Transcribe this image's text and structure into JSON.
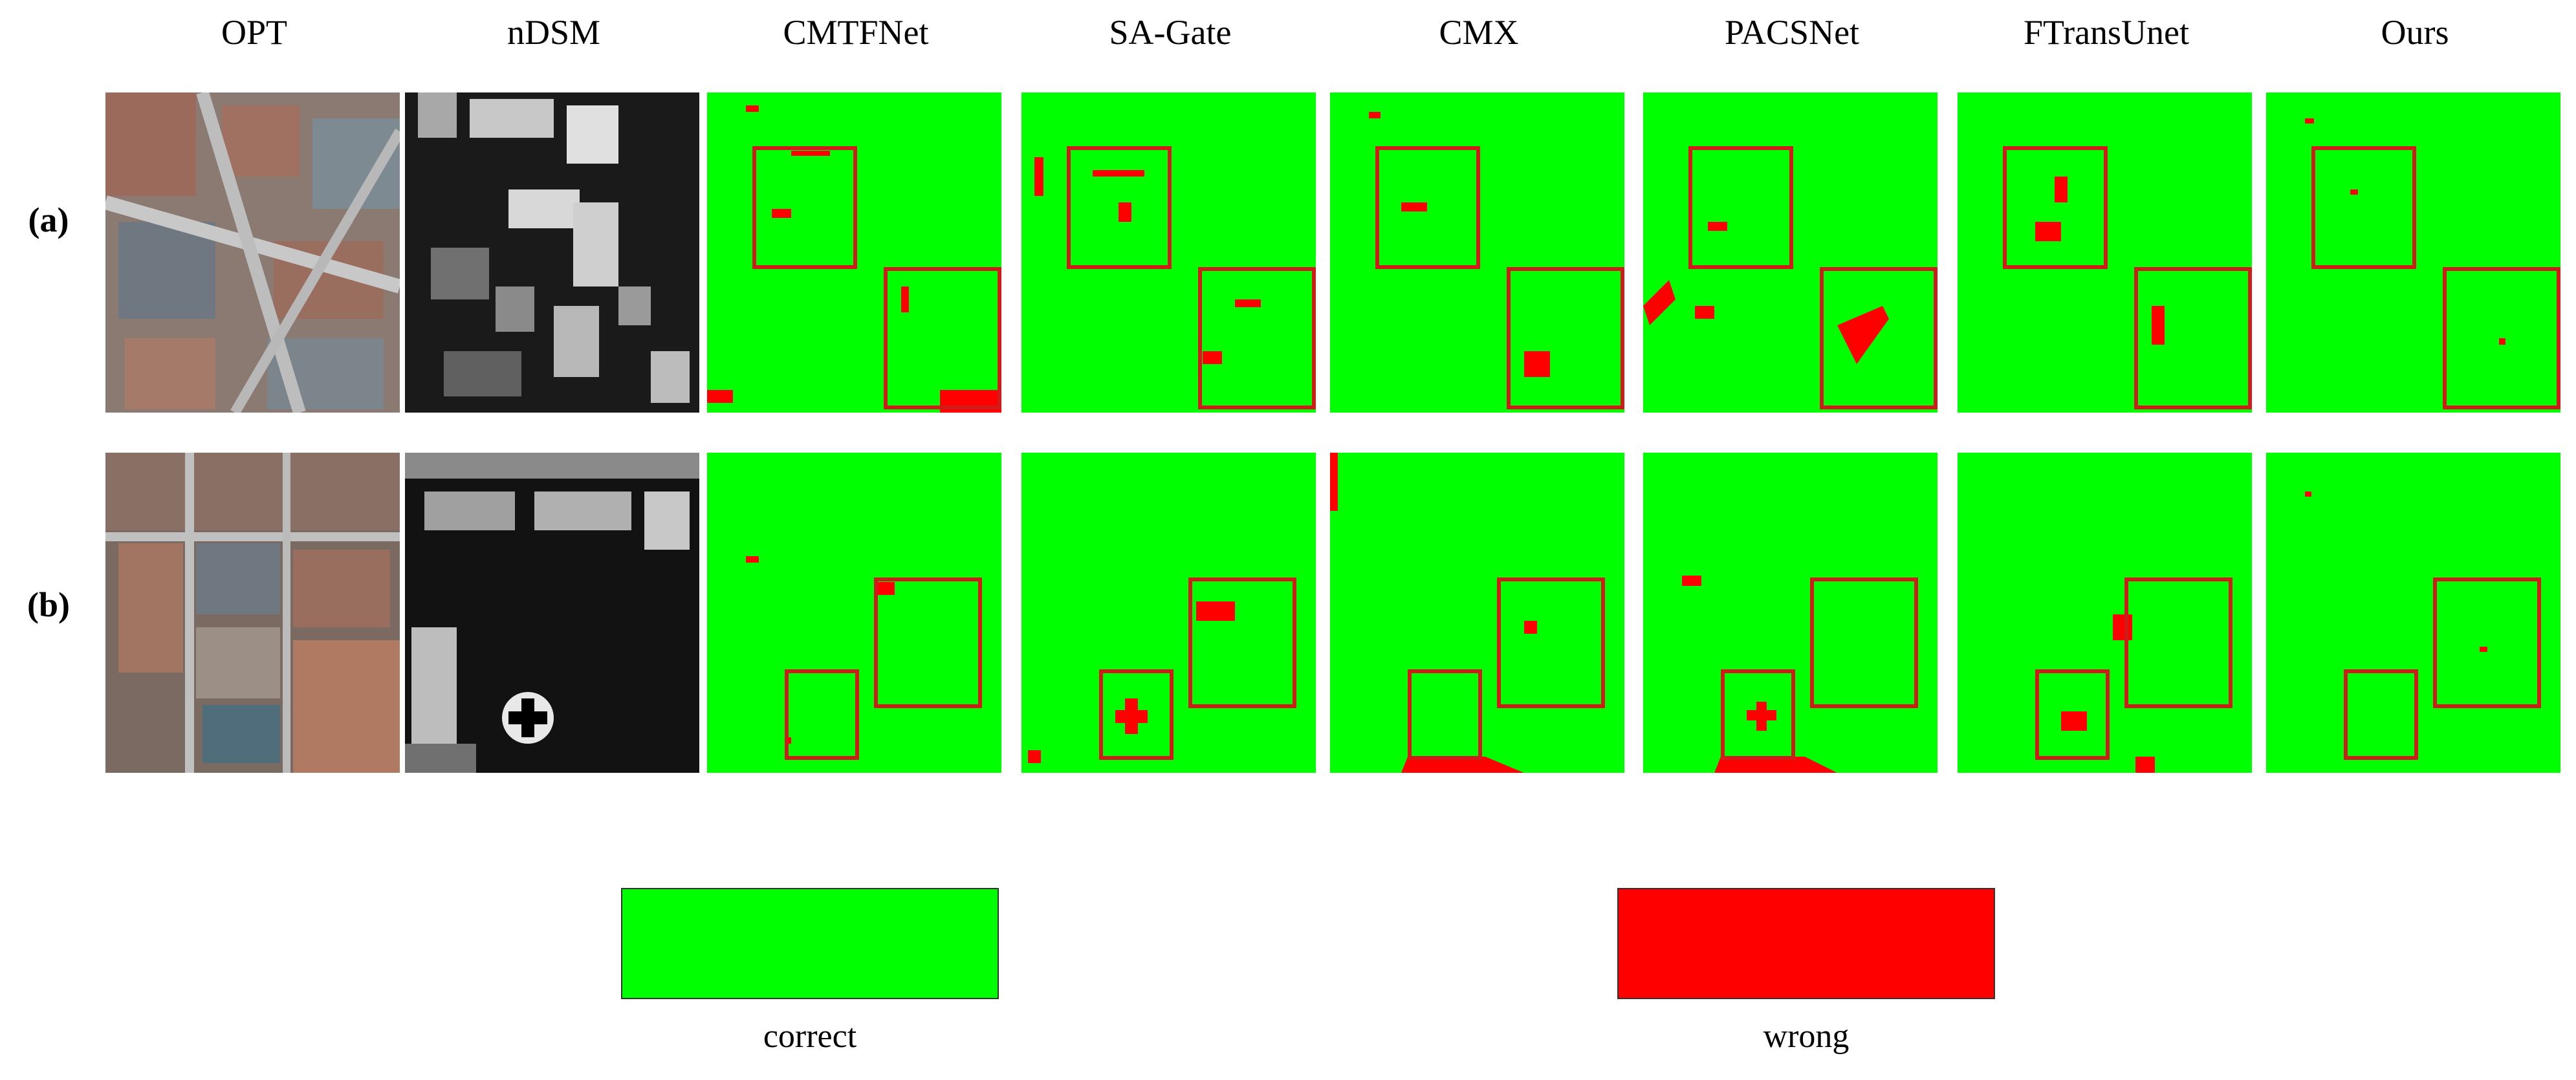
{
  "columns": [
    "OPT",
    "nDSM",
    "CMTFNet",
    "SA-Gate",
    "CMX",
    "PACSNet",
    "FTransUnet",
    "Ours"
  ],
  "rows": [
    "(a)",
    "(b)"
  ],
  "legend": [
    {
      "label": "correct",
      "color": "#00ff00"
    },
    {
      "label": "wrong",
      "color": "#ff0000"
    }
  ],
  "colors": {
    "correct": "#00ff00",
    "wrong": "#ff0000",
    "box": "#d11a1a"
  }
}
